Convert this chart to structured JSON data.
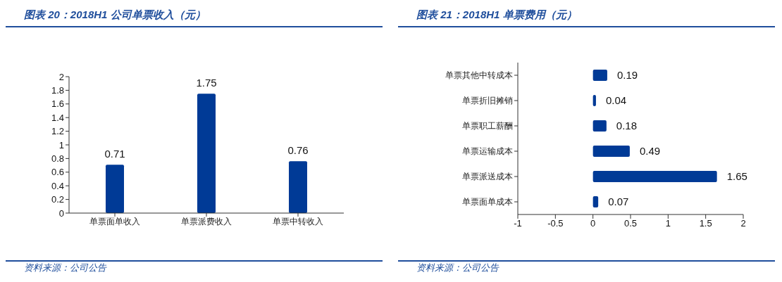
{
  "chart_data": [
    {
      "type": "bar",
      "title": "图表 20：2018H1 公司单票收入（元）",
      "categories": [
        "单票面单收入",
        "单票派费收入",
        "单票中转收入"
      ],
      "values": [
        0.71,
        1.75,
        0.76
      ],
      "color": "#003a96",
      "ylim": [
        0,
        2
      ],
      "yticks": [
        0,
        0.2,
        0.4,
        0.6,
        0.8,
        1,
        1.2,
        1.4,
        1.6,
        1.8,
        2
      ],
      "data_labels": true,
      "grid": false,
      "legend": false,
      "annotations": [
        "资料来源：公司公告"
      ]
    },
    {
      "type": "bar",
      "orientation": "horizontal",
      "title": "图表 21：2018H1 单票费用（元）",
      "categories": [
        "单票其他中转成本",
        "单票折旧摊销",
        "单票职工薪酬",
        "单票运输成本",
        "单票派送成本",
        "单票面单成本"
      ],
      "values": [
        0.19,
        0.04,
        0.18,
        0.49,
        1.65,
        0.07
      ],
      "color": "#003a96",
      "xlim": [
        -1,
        2
      ],
      "xticks": [
        -1,
        -0.5,
        0,
        0.5,
        1,
        1.5,
        2
      ],
      "data_labels": true,
      "grid": false,
      "legend": false,
      "annotations": [
        "资料来源：公司公告"
      ]
    }
  ]
}
